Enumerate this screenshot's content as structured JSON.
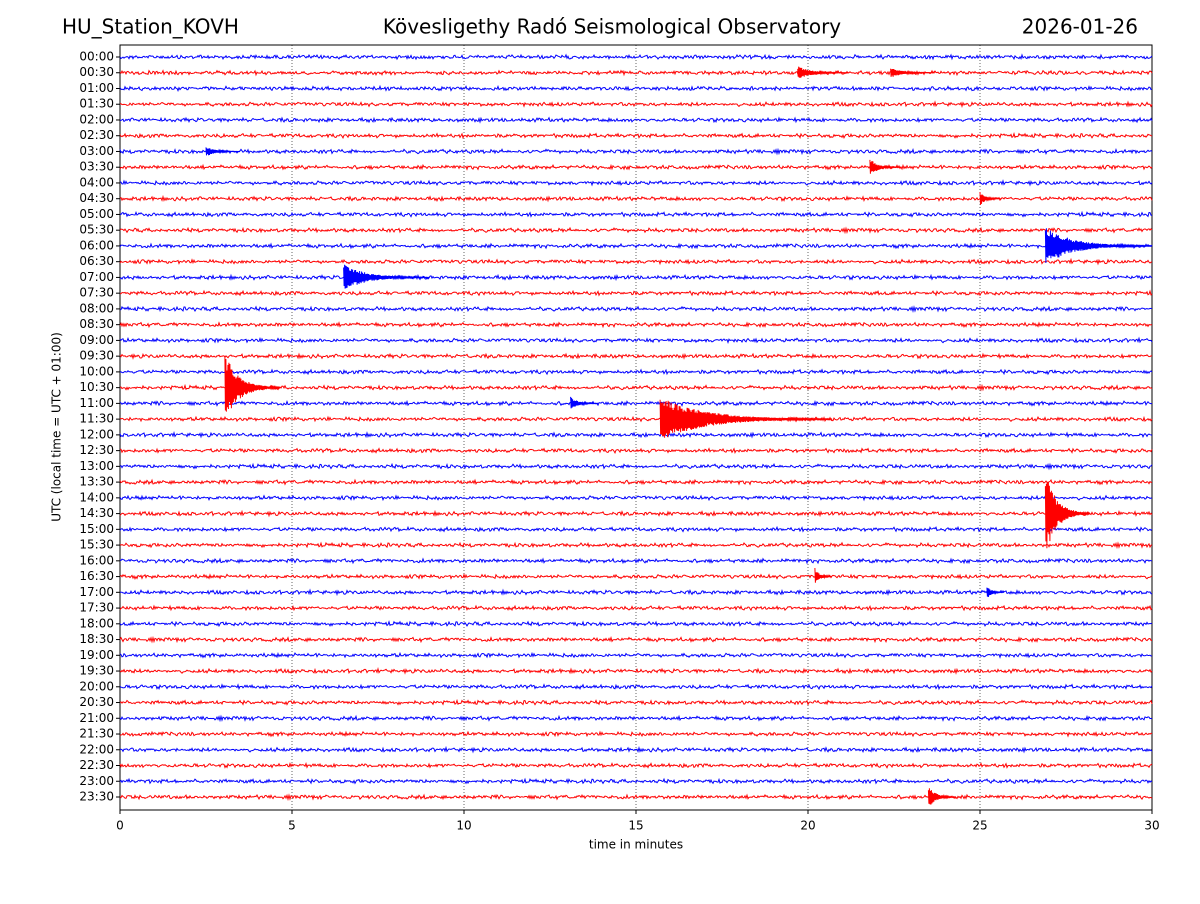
{
  "chart_data": {
    "type": "helicorder",
    "station": "HU_Station_KOVH",
    "title": "Kövesligethy Radó Seismological Observatory",
    "date": "2026-01-26",
    "xlabel": "time in minutes",
    "ylabel": "UTC (local time = UTC + 01:00)",
    "xlim": [
      0,
      30
    ],
    "xticks": [
      0,
      5,
      10,
      15,
      20,
      25,
      30
    ],
    "grid": true,
    "colors": [
      "#0000ff",
      "#ff0000"
    ],
    "rows": [
      "00:00",
      "00:30",
      "01:00",
      "01:30",
      "02:00",
      "02:30",
      "03:00",
      "03:30",
      "04:00",
      "04:30",
      "05:00",
      "05:30",
      "06:00",
      "06:30",
      "07:00",
      "07:30",
      "08:00",
      "08:30",
      "09:00",
      "09:30",
      "10:00",
      "10:30",
      "11:00",
      "11:30",
      "12:00",
      "12:30",
      "13:00",
      "13:30",
      "14:00",
      "14:30",
      "15:00",
      "15:30",
      "16:00",
      "16:30",
      "17:00",
      "17:30",
      "18:00",
      "18:30",
      "19:00",
      "19:30",
      "20:00",
      "20:30",
      "21:00",
      "21:30",
      "22:00",
      "22:30",
      "23:00",
      "23:30"
    ],
    "events": [
      {
        "row": 1,
        "x": 19.7,
        "duration": 1.5,
        "amplitude": 0.4
      },
      {
        "row": 1,
        "x": 22.4,
        "duration": 1.3,
        "amplitude": 0.3
      },
      {
        "row": 6,
        "x": 2.5,
        "duration": 1.0,
        "amplitude": 0.3
      },
      {
        "row": 7,
        "x": 21.8,
        "duration": 0.9,
        "amplitude": 0.5
      },
      {
        "row": 9,
        "x": 25.0,
        "duration": 0.6,
        "amplitude": 0.4
      },
      {
        "row": 12,
        "x": 26.9,
        "duration": 3.1,
        "amplitude": 1.1
      },
      {
        "row": 14,
        "x": 6.5,
        "duration": 2.5,
        "amplitude": 0.8
      },
      {
        "row": 21,
        "x": 3.05,
        "duration": 1.6,
        "amplitude": 2.0
      },
      {
        "row": 22,
        "x": 13.1,
        "duration": 0.8,
        "amplitude": 0.4
      },
      {
        "row": 23,
        "x": 15.7,
        "duration": 5.0,
        "amplitude": 1.3
      },
      {
        "row": 29,
        "x": 26.9,
        "duration": 1.3,
        "amplitude": 2.4
      },
      {
        "row": 33,
        "x": 20.2,
        "duration": 0.5,
        "amplitude": 0.5
      },
      {
        "row": 34,
        "x": 25.2,
        "duration": 0.5,
        "amplitude": 0.4
      },
      {
        "row": 47,
        "x": 23.5,
        "duration": 0.8,
        "amplitude": 0.7
      }
    ]
  }
}
